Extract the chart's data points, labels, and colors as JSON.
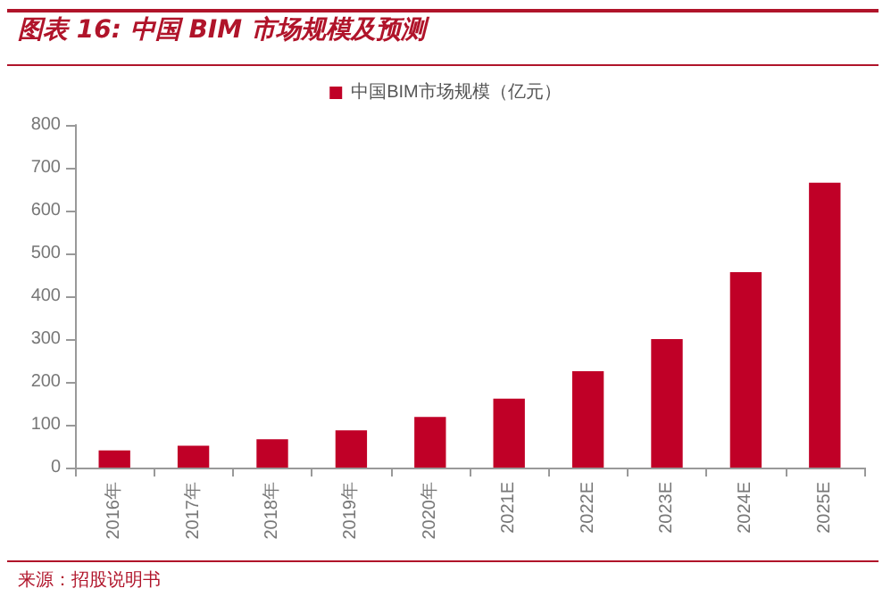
{
  "chart_data": {
    "type": "bar",
    "title": "图表 16: 中国 BIM 市场规模及预测",
    "categories": [
      "2016年",
      "2017年",
      "2018年",
      "2019年",
      "2020年",
      "2021E",
      "2022E",
      "2023E",
      "2024E",
      "2025E"
    ],
    "series": [
      {
        "name": "中国BIM市场规模（亿元）",
        "color": "#c00027",
        "values": [
          40,
          51,
          66,
          87,
          118,
          161,
          225,
          300,
          456,
          665
        ]
      }
    ],
    "ylim": [
      0,
      800
    ],
    "yticks": [
      0,
      100,
      200,
      300,
      400,
      500,
      600,
      700,
      800
    ],
    "grid": false,
    "legend": "top",
    "annotations": [
      "来源：招股说明书"
    ]
  }
}
